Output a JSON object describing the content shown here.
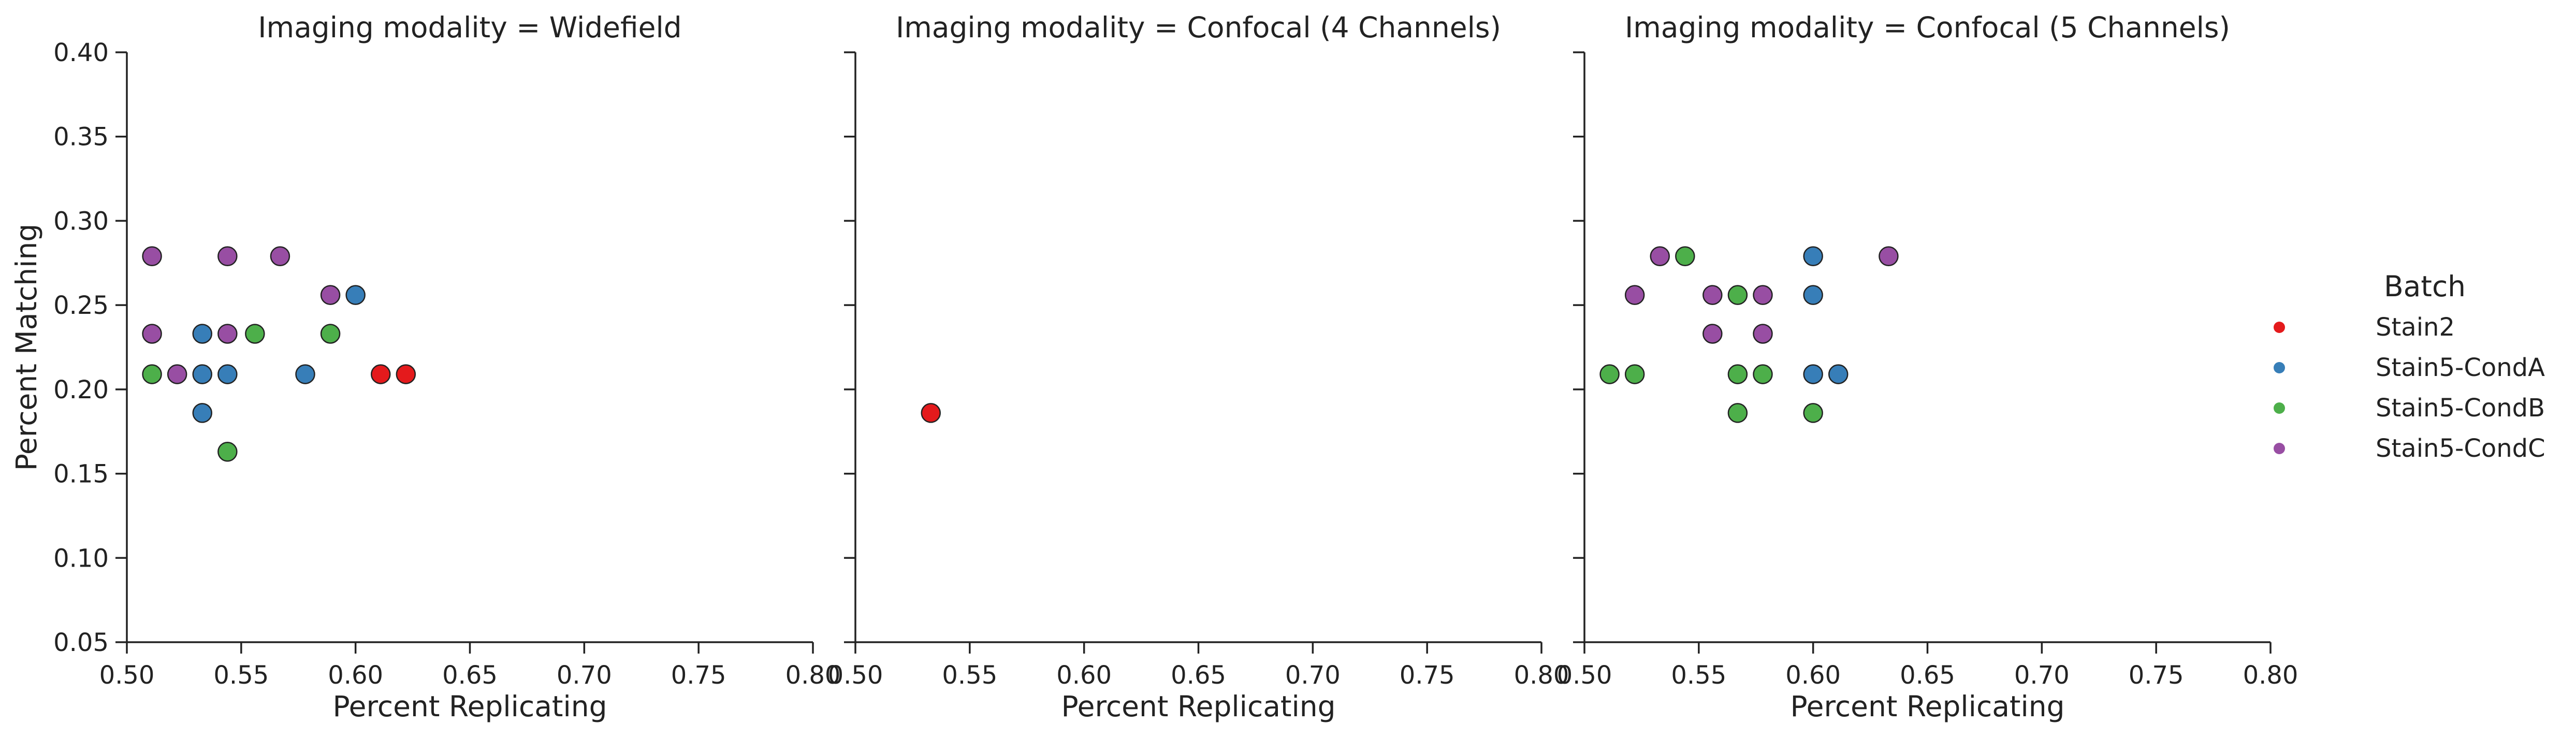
{
  "chart_data": [
    {
      "type": "scatter",
      "title": "Imaging modality = Widefield",
      "xlabel": "Percent Replicating",
      "ylabel": "Percent Matching",
      "xlim": [
        0.5,
        0.8
      ],
      "ylim": [
        0.05,
        0.4
      ],
      "x_ticks": [
        "0.50",
        "0.55",
        "0.60",
        "0.65",
        "0.70",
        "0.75",
        "0.80"
      ],
      "y_ticks": [
        "0.05",
        "0.10",
        "0.15",
        "0.20",
        "0.25",
        "0.30",
        "0.35",
        "0.40"
      ],
      "grid": false,
      "series": [
        {
          "name": "Stain2",
          "points": [
            [
              0.611,
              0.209
            ],
            [
              0.622,
              0.209
            ]
          ]
        },
        {
          "name": "Stain5-CondA",
          "points": [
            [
              0.6,
              0.256
            ],
            [
              0.533,
              0.233
            ],
            [
              0.533,
              0.209
            ],
            [
              0.544,
              0.209
            ],
            [
              0.578,
              0.209
            ],
            [
              0.533,
              0.186
            ]
          ]
        },
        {
          "name": "Stain5-CondB",
          "points": [
            [
              0.511,
              0.209
            ],
            [
              0.556,
              0.233
            ],
            [
              0.589,
              0.233
            ],
            [
              0.544,
              0.163
            ]
          ]
        },
        {
          "name": "Stain5-CondC",
          "points": [
            [
              0.511,
              0.279
            ],
            [
              0.544,
              0.279
            ],
            [
              0.567,
              0.279
            ],
            [
              0.511,
              0.233
            ],
            [
              0.544,
              0.233
            ],
            [
              0.589,
              0.256
            ],
            [
              0.522,
              0.209
            ]
          ]
        }
      ]
    },
    {
      "type": "scatter",
      "title": "Imaging modality = Confocal (4 Channels)",
      "xlabel": "Percent Replicating",
      "ylabel": "",
      "xlim": [
        0.5,
        0.8
      ],
      "ylim": [
        0.05,
        0.4
      ],
      "x_ticks": [
        "0.50",
        "0.55",
        "0.60",
        "0.65",
        "0.70",
        "0.75",
        "0.80"
      ],
      "grid": false,
      "series": [
        {
          "name": "Stain2",
          "points": [
            [
              0.533,
              0.186
            ]
          ]
        }
      ]
    },
    {
      "type": "scatter",
      "title": "Imaging modality = Confocal (5 Channels)",
      "xlabel": "Percent Replicating",
      "ylabel": "",
      "xlim": [
        0.5,
        0.8
      ],
      "ylim": [
        0.05,
        0.4
      ],
      "x_ticks": [
        "0.50",
        "0.55",
        "0.60",
        "0.65",
        "0.70",
        "0.75",
        "0.80"
      ],
      "grid": false,
      "series": [
        {
          "name": "Stain5-CondA",
          "points": [
            [
              0.6,
              0.279
            ],
            [
              0.6,
              0.256
            ],
            [
              0.6,
              0.209
            ],
            [
              0.611,
              0.209
            ]
          ]
        },
        {
          "name": "Stain5-CondB",
          "points": [
            [
              0.544,
              0.279
            ],
            [
              0.567,
              0.256
            ],
            [
              0.511,
              0.209
            ],
            [
              0.522,
              0.209
            ],
            [
              0.567,
              0.209
            ],
            [
              0.578,
              0.209
            ],
            [
              0.567,
              0.186
            ],
            [
              0.6,
              0.186
            ]
          ]
        },
        {
          "name": "Stain5-CondC",
          "points": [
            [
              0.533,
              0.279
            ],
            [
              0.633,
              0.279
            ],
            [
              0.522,
              0.256
            ],
            [
              0.556,
              0.256
            ],
            [
              0.578,
              0.256
            ],
            [
              0.556,
              0.233
            ],
            [
              0.578,
              0.233
            ]
          ]
        }
      ]
    }
  ],
  "legend": {
    "title": "Batch",
    "placement": "right",
    "items": [
      {
        "label": "Stain2",
        "color": "#e41a1c"
      },
      {
        "label": "Stain5-CondA",
        "color": "#377eb8"
      },
      {
        "label": "Stain5-CondB",
        "color": "#4daf4a"
      },
      {
        "label": "Stain5-CondC",
        "color": "#984ea3"
      }
    ]
  }
}
